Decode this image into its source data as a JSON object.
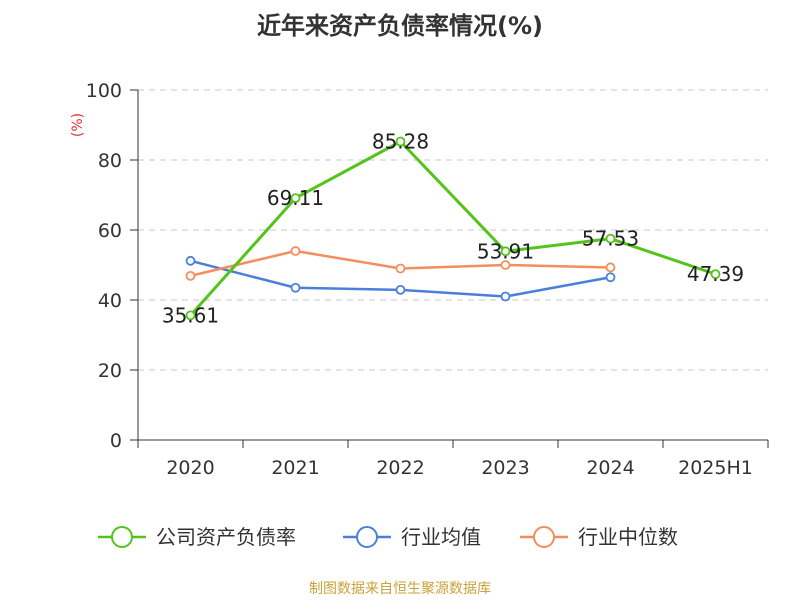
{
  "title": "近年来资产负债率情况(%)",
  "source": "制图数据来自恒生聚源数据库",
  "chart_data": {
    "type": "line",
    "title": "近年来资产负债率情况(%)",
    "ylabel": "(%)",
    "ylim": [
      0,
      100
    ],
    "yticks": [
      0,
      20,
      40,
      60,
      80,
      100
    ],
    "grid": true,
    "legend": "bottom",
    "categories": [
      "2020",
      "2021",
      "2022",
      "2023",
      "2024",
      "2025H1"
    ],
    "series": [
      {
        "name": "公司资产负债率",
        "color": "#52c41a",
        "values": [
          35.61,
          69.11,
          85.28,
          53.91,
          57.53,
          47.39
        ],
        "labels": [
          "35.61",
          "69.11",
          "85.28",
          "53.91",
          "57.53",
          "47.39"
        ]
      },
      {
        "name": "行业均值",
        "color": "#4a7fdc",
        "values": [
          51.2,
          43.5,
          42.9,
          41.0,
          46.5,
          null
        ]
      },
      {
        "name": "行业中位数",
        "color": "#f58d5c",
        "values": [
          46.9,
          54.0,
          49.0,
          50.0,
          49.3,
          null
        ]
      }
    ]
  }
}
